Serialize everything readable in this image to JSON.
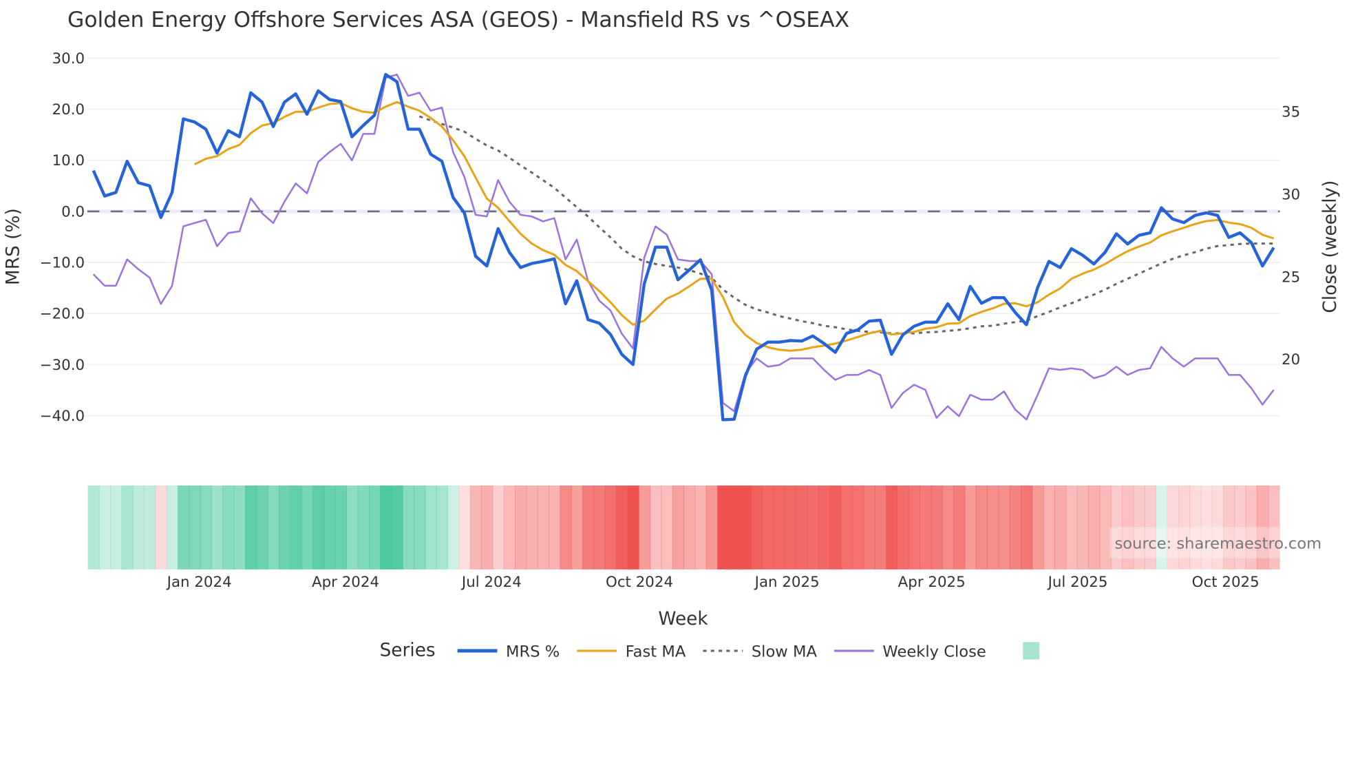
{
  "chart_data": {
    "type": "line",
    "title": "Golden Energy Offshore Services ASA (GEOS) - Mansfield RS vs ^OSEAX",
    "xlabel": "Week",
    "ylabel": "MRS (%)",
    "y2label": "Close (weekly)",
    "x_start": "2023-10-27",
    "x_step_days": 7,
    "ylim": [
      -42.5,
      32.9
    ],
    "y2lim": [
      15.76,
      39.09
    ],
    "y_ticks": [
      "30.0",
      "20.0",
      "10.0",
      "0.0",
      "−10.0",
      "−20.0",
      "−30.0",
      "−40.0"
    ],
    "y_tick_values": [
      30,
      20,
      10,
      0,
      -10,
      -20,
      -30,
      -40
    ],
    "y2_ticks": [
      "35",
      "30",
      "25",
      "20"
    ],
    "y2_tick_values": [
      35,
      30,
      25,
      20
    ],
    "x_ticks": [
      {
        "label": "Jan 2024",
        "date": "2024-01-01"
      },
      {
        "label": "Apr 2024",
        "date": "2024-04-01"
      },
      {
        "label": "Jul 2024",
        "date": "2024-07-01"
      },
      {
        "label": "Oct 2024",
        "date": "2024-10-01"
      },
      {
        "label": "Jan 2025",
        "date": "2025-01-01"
      },
      {
        "label": "Apr 2025",
        "date": "2025-04-01"
      },
      {
        "label": "Jul 2025",
        "date": "2025-07-01"
      },
      {
        "label": "Oct 2025",
        "date": "2025-10-01"
      }
    ],
    "zero_line": 0,
    "grid": true,
    "series": [
      {
        "name": "MRS %",
        "color": "#2563d9",
        "axis": "left",
        "values": [
          8,
          3,
          3.7,
          9.8,
          5.6,
          5,
          -1.2,
          3.7,
          18.1,
          17.5,
          16.1,
          11.4,
          15.8,
          14.6,
          23.2,
          21.4,
          16.6,
          21.4,
          23,
          19,
          23.6,
          21.9,
          21.5,
          14.6,
          16.8,
          18.8,
          26.8,
          25.4,
          16.1,
          16.1,
          11.2,
          9.8,
          2.7,
          -0.3,
          -8.8,
          -10.7,
          -3.4,
          -8,
          -11,
          -10.2,
          -9.8,
          -9.3,
          -18.1,
          -13.6,
          -21.2,
          -21.9,
          -24.1,
          -28,
          -30,
          -14.2,
          -7,
          -7,
          -13.4,
          -11.5,
          -9.5,
          -15.4,
          -40.8,
          -40.7,
          -32.2,
          -27,
          -25.6,
          -25.6,
          -25.3,
          -25.4,
          -24.4,
          -25.9,
          -27.6,
          -23.9,
          -23.2,
          -21.5,
          -21.3,
          -28,
          -24.2,
          -22.5,
          -21.7,
          -21.7,
          -18.1,
          -21.2,
          -14.7,
          -18,
          -16.9,
          -16.9,
          -19.8,
          -22.2,
          -14.9,
          -9.8,
          -11,
          -7.3,
          -8.6,
          -10.3,
          -8,
          -4.4,
          -6.4,
          -4.7,
          -4.2,
          0.7,
          -1.5,
          -2.2,
          -0.8,
          -0.3,
          -0.8,
          -5.1,
          -4.2,
          -6.1,
          -10.7,
          -7.1
        ]
      },
      {
        "name": "Fast MA",
        "color": "#e8a317",
        "axis": "left",
        "values": [
          9.2,
          10.3,
          10.8,
          12.2,
          13,
          15.3,
          16.8,
          17.3,
          18.5,
          19.5,
          19.5,
          20.3,
          21,
          21.2,
          20.2,
          19.5,
          19.3,
          20.5,
          21.4,
          20.5,
          19.7,
          18.3,
          16.6,
          13.9,
          10.8,
          6.6,
          2.5,
          0.7,
          -1.9,
          -4.4,
          -6.3,
          -7.6,
          -8.5,
          -10.5,
          -11.7,
          -13.7,
          -15.6,
          -17.8,
          -20.3,
          -22.2,
          -21.4,
          -19.2,
          -17.1,
          -16.1,
          -14.7,
          -13.2,
          -13.2,
          -16.8,
          -21.7,
          -24.2,
          -25.8,
          -26.6,
          -27.1,
          -27.3,
          -27.1,
          -26.6,
          -26.3,
          -25.9,
          -25.3,
          -24.6,
          -23.9,
          -23.4,
          -24.1,
          -23.9,
          -23.6,
          -23,
          -22.7,
          -22,
          -21.9,
          -20.5,
          -19.7,
          -19,
          -18.1,
          -18,
          -18.6,
          -17.8,
          -16.3,
          -15.1,
          -13.2,
          -12.2,
          -11.4,
          -10.3,
          -9,
          -7.8,
          -6.9,
          -6.1,
          -4.7,
          -3.9,
          -3.2,
          -2.5,
          -1.9,
          -1.7,
          -2.2,
          -2.5,
          -3.2,
          -4.6,
          -5.3
        ]
      },
      {
        "name": "Slow MA",
        "color": "#666666",
        "axis": "left",
        "dash": true,
        "values": [
          18.6,
          17.8,
          17.1,
          16.4,
          15.6,
          14.2,
          12.9,
          11.9,
          10.5,
          9,
          7.6,
          6.1,
          4.6,
          2.7,
          0.8,
          -1,
          -3.1,
          -5.1,
          -7.3,
          -8.8,
          -9.8,
          -10.3,
          -10.7,
          -11,
          -11.5,
          -12.2,
          -13,
          -15.3,
          -16.9,
          -18.3,
          -19.2,
          -19.8,
          -20.5,
          -21,
          -21.5,
          -21.9,
          -22.4,
          -22.7,
          -23.1,
          -23.4,
          -23.6,
          -23.7,
          -23.9,
          -23.9,
          -23.9,
          -23.7,
          -23.6,
          -23.4,
          -23.2,
          -22.9,
          -22.5,
          -22.4,
          -22,
          -21.7,
          -21.4,
          -20.5,
          -19.7,
          -18.8,
          -18,
          -17.1,
          -16.3,
          -15.3,
          -14.2,
          -13.2,
          -12.2,
          -11.2,
          -10.2,
          -9.3,
          -8.6,
          -8,
          -7.3,
          -6.8,
          -6.6,
          -6.4,
          -6.3,
          -6.3,
          -6.3
        ]
      },
      {
        "name": "Weekly Close",
        "color": "#9b72e0",
        "axis": "right",
        "values": [
          25.1,
          24.4,
          24.4,
          26.0,
          25.4,
          24.9,
          23.3,
          24.4,
          28.0,
          28.2,
          28.4,
          26.8,
          27.6,
          27.7,
          29.7,
          28.8,
          28.2,
          29.5,
          30.6,
          30.0,
          31.9,
          32.5,
          33.0,
          32.0,
          33.6,
          33.6,
          37.0,
          37.2,
          35.9,
          36.1,
          35.0,
          35.2,
          32.5,
          31.0,
          28.7,
          28.6,
          30.8,
          29.5,
          28.7,
          28.6,
          28.3,
          28.5,
          26.0,
          27.2,
          24.7,
          23.5,
          22.9,
          21.5,
          20.6,
          26.1,
          28.0,
          27.5,
          26.0,
          25.9,
          25.9,
          25.1,
          17.3,
          16.8,
          19.1,
          20.0,
          19.5,
          19.6,
          20.0,
          20.0,
          20.0,
          19.3,
          18.7,
          19.0,
          19.0,
          19.3,
          19.0,
          17.0,
          17.9,
          18.4,
          18.1,
          16.4,
          17.1,
          16.5,
          17.8,
          17.5,
          17.5,
          18.0,
          16.9,
          16.3,
          17.8,
          19.4,
          19.3,
          19.4,
          19.3,
          18.8,
          19.0,
          19.5,
          19.0,
          19.3,
          19.4,
          20.7,
          20.0,
          19.5,
          20.0,
          20.0,
          20.0,
          19.0,
          19.0,
          18.2,
          17.2,
          18.1
        ]
      }
    ],
    "heatmap": {
      "source_series": "MRS %",
      "positive_color": "#3cc495",
      "negative_color": "#ef5350",
      "saturation_at": 30
    },
    "legend": {
      "title": "Series",
      "placement": "bottom-center"
    },
    "annotation": "source: sharemaestro.com"
  }
}
